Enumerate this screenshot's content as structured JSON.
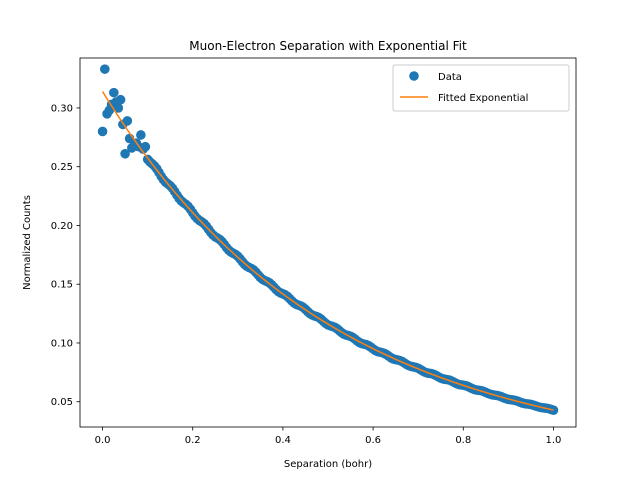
{
  "chart_data": {
    "type": "scatter",
    "title": "Muon-Electron Separation with Exponential Fit",
    "xlabel": "Separation (bohr)",
    "ylabel": "Normalized Counts",
    "xlim": [
      -0.05,
      1.05
    ],
    "ylim": [
      0.0285,
      0.3425
    ],
    "xticks": [
      0.0,
      0.2,
      0.4,
      0.6,
      0.8,
      1.0
    ],
    "xtick_labels": [
      "0.0",
      "0.2",
      "0.4",
      "0.6",
      "0.8",
      "1.0"
    ],
    "yticks": [
      0.05,
      0.1,
      0.15,
      0.2,
      0.25,
      0.3
    ],
    "ytick_labels": [
      "0.05",
      "0.10",
      "0.15",
      "0.20",
      "0.25",
      "0.30"
    ],
    "grid": false,
    "legend": "top-right",
    "series": [
      {
        "name": "Data",
        "kind": "scatter",
        "color": "#1f77b4",
        "x": [
          0.0,
          0.005,
          0.01,
          0.015,
          0.02,
          0.025,
          0.03,
          0.035,
          0.04,
          0.045,
          0.05,
          0.055,
          0.06,
          0.065,
          0.07,
          0.075,
          0.08,
          0.085,
          0.09,
          0.095
        ],
        "y": [
          0.28,
          0.333,
          0.295,
          0.298,
          0.303,
          0.313,
          0.305,
          0.3,
          0.307,
          0.286,
          0.261,
          0.289,
          0.274,
          0.266,
          0.268,
          0.27,
          0.267,
          0.277,
          0.265,
          0.267
        ],
        "model_continuation": {
          "x_start": 0.1,
          "x_end": 1.0,
          "step": 0.005,
          "a": 0.314,
          "b": 1.99
        }
      },
      {
        "name": "Fitted Exponential",
        "kind": "line",
        "color": "#ff7f0e",
        "model": {
          "a": 0.314,
          "b": 1.99,
          "x_start": 0.0,
          "x_end": 1.0
        }
      }
    ]
  }
}
